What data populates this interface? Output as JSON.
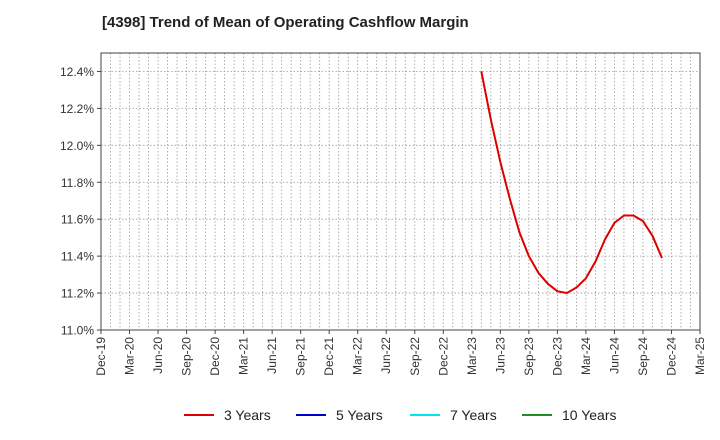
{
  "chart_data": {
    "type": "line",
    "title": "[4398]  Trend of Mean of Operating Cashflow Margin",
    "xlabel": "",
    "ylabel": "",
    "x_ticks": [
      "Dec-19",
      "Mar-20",
      "Jun-20",
      "Sep-20",
      "Dec-20",
      "Mar-21",
      "Jun-21",
      "Sep-21",
      "Dec-21",
      "Mar-22",
      "Jun-22",
      "Sep-22",
      "Dec-22",
      "Mar-23",
      "Jun-23",
      "Sep-23",
      "Dec-23",
      "Mar-24",
      "Jun-24",
      "Sep-24",
      "Dec-24",
      "Mar-25"
    ],
    "y_ticks": [
      "11.0%",
      "11.2%",
      "11.4%",
      "11.6%",
      "11.8%",
      "12.0%",
      "12.2%",
      "12.4%"
    ],
    "ylim": [
      11.0,
      12.5
    ],
    "grid": true,
    "legend_position": "bottom",
    "series": [
      {
        "name": "3 Years",
        "color": "#dd0000",
        "points": [
          [
            "Apr-23",
            12.4
          ],
          [
            "May-23",
            12.14
          ],
          [
            "Jun-23",
            11.91
          ],
          [
            "Jul-23",
            11.71
          ],
          [
            "Aug-23",
            11.53
          ],
          [
            "Sep-23",
            11.4
          ],
          [
            "Oct-23",
            11.31
          ],
          [
            "Nov-23",
            11.25
          ],
          [
            "Dec-23",
            11.21
          ],
          [
            "Jan-24",
            11.2
          ],
          [
            "Feb-24",
            11.23
          ],
          [
            "Mar-24",
            11.28
          ],
          [
            "Apr-24",
            11.37
          ],
          [
            "May-24",
            11.49
          ],
          [
            "Jun-24",
            11.58
          ],
          [
            "Jul-24",
            11.62
          ],
          [
            "Aug-24",
            11.62
          ],
          [
            "Sep-24",
            11.59
          ],
          [
            "Oct-24",
            11.51
          ],
          [
            "Nov-24",
            11.39
          ]
        ]
      },
      {
        "name": "5 Years",
        "color": "#0000cc",
        "points": []
      },
      {
        "name": "7 Years",
        "color": "#00e5ee",
        "points": []
      },
      {
        "name": "10 Years",
        "color": "#228b22",
        "points": []
      }
    ]
  }
}
